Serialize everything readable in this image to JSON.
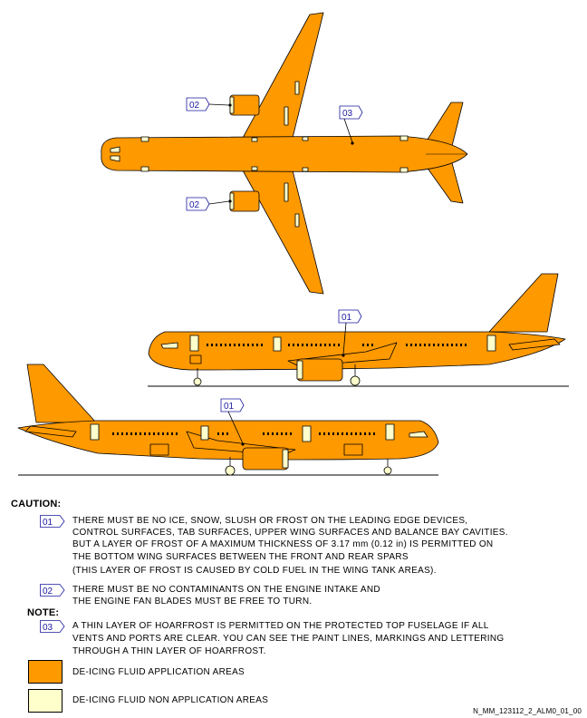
{
  "colors": {
    "application": "#FF9900",
    "non_application": "#FFFFCC",
    "callout": "#1a1aa0",
    "outline": "#000000"
  },
  "callouts": {
    "c01": "01",
    "c02": "02",
    "c03": "03"
  },
  "caution": {
    "heading": "CAUTION:",
    "note01": [
      "THERE MUST BE NO ICE, SNOW, SLUSH OR FROST ON THE LEADING EDGE DEVICES,",
      "CONTROL SURFACES, TAB SURFACES, UPPER WING SURFACES AND BALANCE BAY CAVITIES.",
      "BUT A LAYER OF FROST OF A MAXIMUM THICKNESS OF 3.17 mm (0.12 in) IS PERMITTED ON",
      "THE BOTTOM WING SURFACES BETWEEN THE FRONT AND REAR SPARS",
      "(THIS LAYER OF FROST IS CAUSED BY COLD FUEL IN THE WING TANK AREAS)."
    ],
    "note02": [
      "THERE MUST BE NO CONTAMINANTS ON THE ENGINE INTAKE AND",
      "THE ENGINE FAN BLADES MUST BE FREE TO TURN."
    ]
  },
  "note": {
    "heading": "NOTE:",
    "note03": [
      "A THIN LAYER OF HOARFROST IS PERMITTED ON THE PROTECTED TOP FUSELAGE IF ALL",
      "VENTS AND PORTS ARE CLEAR. YOU CAN SEE THE PAINT LINES, MARKINGS AND LETTERING",
      "THROUGH A THIN LAYER OF HOARFROST."
    ]
  },
  "legend": {
    "application_label": "DE-ICING FLUID APPLICATION AREAS",
    "non_application_label": "DE-ICING FLUID NON APPLICATION AREAS"
  },
  "reference": "N_MM_123112_2_ALM0_01_00"
}
